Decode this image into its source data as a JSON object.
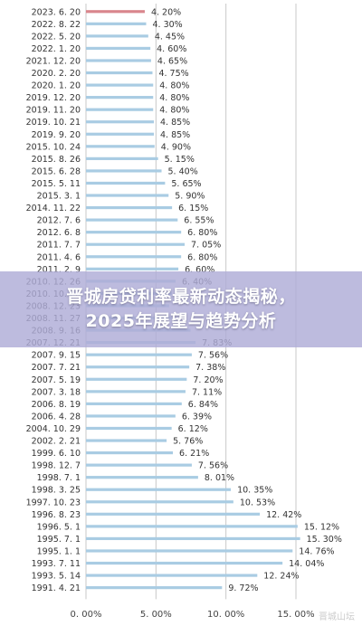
{
  "chart_data": {
    "type": "bar",
    "orientation": "horizontal",
    "categories": [
      "2023. 6. 20",
      "2022. 8. 22",
      "2022. 5. 20",
      "2022. 1. 20",
      "2021. 12. 20",
      "2020. 2. 20",
      "2020. 1. 20",
      "2019. 12. 20",
      "2019. 11. 20",
      "2019. 10. 21",
      "2019. 9. 20",
      "2015. 10. 24",
      "2015. 8. 26",
      "2015. 6. 28",
      "2015. 5. 11",
      "2015. 3. 1",
      "2014. 11. 22",
      "2012. 7. 6",
      "2012. 6. 8",
      "2011. 7. 7",
      "2011. 4. 6",
      "2011. 2. 9",
      "2010. 12. 26",
      "2010. 10. 20",
      "2008. 12. 23",
      "2008. 11. 27",
      "2008. 9. 16",
      "2007. 12. 21",
      "2007. 9. 15",
      "2007. 7. 21",
      "2007. 5. 19",
      "2007. 3. 18",
      "2006. 8. 19",
      "2006. 4. 28",
      "2004. 10. 29",
      "2002. 2. 21",
      "1999. 6. 10",
      "1998. 12. 7",
      "1998. 7. 1",
      "1998. 3. 25",
      "1997. 10. 23",
      "1996. 8. 23",
      "1996. 5. 1",
      "1995. 7. 1",
      "1995. 1. 1",
      "1993. 7. 11",
      "1993. 5. 14",
      "1991. 4. 21"
    ],
    "values": [
      4.2,
      4.3,
      4.45,
      4.6,
      4.65,
      4.75,
      4.8,
      4.8,
      4.8,
      4.85,
      4.85,
      4.9,
      5.15,
      5.4,
      5.65,
      5.9,
      6.15,
      6.55,
      6.8,
      7.05,
      6.8,
      6.6,
      6.4,
      6.14,
      5.94,
      6.12,
      7.47,
      7.83,
      7.56,
      7.38,
      7.2,
      7.11,
      6.84,
      6.39,
      6.12,
      5.76,
      6.21,
      7.56,
      8.01,
      10.35,
      10.53,
      12.42,
      15.12,
      15.3,
      14.76,
      14.04,
      12.24,
      9.72
    ],
    "value_labels": [
      "4. 20%",
      "4. 30%",
      "4. 45%",
      "4. 60%",
      "4. 65%",
      "4. 75%",
      "4. 80%",
      "4. 80%",
      "4. 80%",
      "4. 85%",
      "4. 85%",
      "4. 90%",
      "5. 15%",
      "5. 40%",
      "5. 65%",
      "5. 90%",
      "6. 15%",
      "6. 55%",
      "6. 80%",
      "7. 05%",
      "6. 80%",
      "6. 60%",
      "6. 40%",
      "",
      "",
      "",
      "",
      "7. 83%",
      "7. 56%",
      "7. 38%",
      "7. 20%",
      "7. 11%",
      "6. 84%",
      "6. 39%",
      "6. 12%",
      "5. 76%",
      "6. 21%",
      "7. 56%",
      "8. 01%",
      "10. 35%",
      "10. 53%",
      "12. 42%",
      "15. 12%",
      "15. 30%",
      "14. 76%",
      "14. 04%",
      "12. 24%",
      "9. 72%"
    ],
    "xticks": [
      "0. 00%",
      "5. 00%",
      "10. 00%",
      "15. 00%"
    ],
    "xlim": [
      0,
      16.5
    ],
    "title": "",
    "xlabel": "",
    "ylabel": "",
    "grid": true,
    "highlight_index": 0
  },
  "overlay": {
    "line1": "晋城房贷利率最新动态揭秘，",
    "line2": "2025年展望与趋势分析"
  },
  "watermark": "晋城山坛",
  "colors": {
    "bar": "#a9cce3",
    "bar_highlight": "#d9868d",
    "label": "#333333",
    "grid": "#c8c8c8"
  }
}
